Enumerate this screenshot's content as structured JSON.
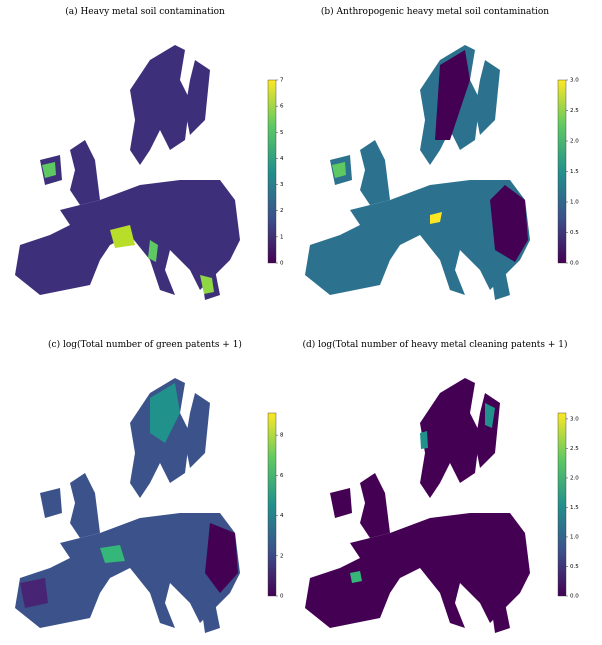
{
  "maps": [
    {
      "title": "(a) Heavy metal soil contamination",
      "colorbar": {
        "lim": [
          0,
          7
        ],
        "ticks": [
          0,
          1,
          2,
          3,
          4,
          5,
          6,
          7
        ]
      }
    },
    {
      "title": "(b) Anthropogenic heavy metal soil contamination",
      "colorbar": {
        "lim": [
          0,
          3
        ],
        "ticks": [
          {
            "value": 0,
            "label": "0.0"
          },
          {
            "value": 0.5,
            "label": "0.5"
          },
          {
            "value": 1,
            "label": "1.0"
          },
          {
            "value": 1.5,
            "label": "1.5"
          },
          {
            "value": 2,
            "label": "2.0"
          },
          {
            "value": 2.5,
            "label": "2.5"
          },
          {
            "value": 3,
            "label": "3.0"
          }
        ]
      }
    },
    {
      "title": "(c) log(Total number of green patents + 1)",
      "colorbar": {
        "lim": [
          0,
          9.1
        ],
        "ticks": [
          0,
          2,
          4,
          6,
          8
        ]
      }
    },
    {
      "title": "(d) log(Total number of heavy metal cleaning patents + 1)",
      "colorbar": {
        "lim": [
          0,
          3.1
        ],
        "ticks": [
          {
            "value": 0,
            "label": "0.0"
          },
          {
            "value": 0.5,
            "label": "0.5"
          },
          {
            "value": 1,
            "label": "1.0"
          },
          {
            "value": 1.5,
            "label": "1.5"
          },
          {
            "value": 2,
            "label": "2.0"
          },
          {
            "value": 2.5,
            "label": "2.5"
          },
          {
            "value": 3,
            "label": "3.0"
          }
        ]
      }
    }
  ]
}
